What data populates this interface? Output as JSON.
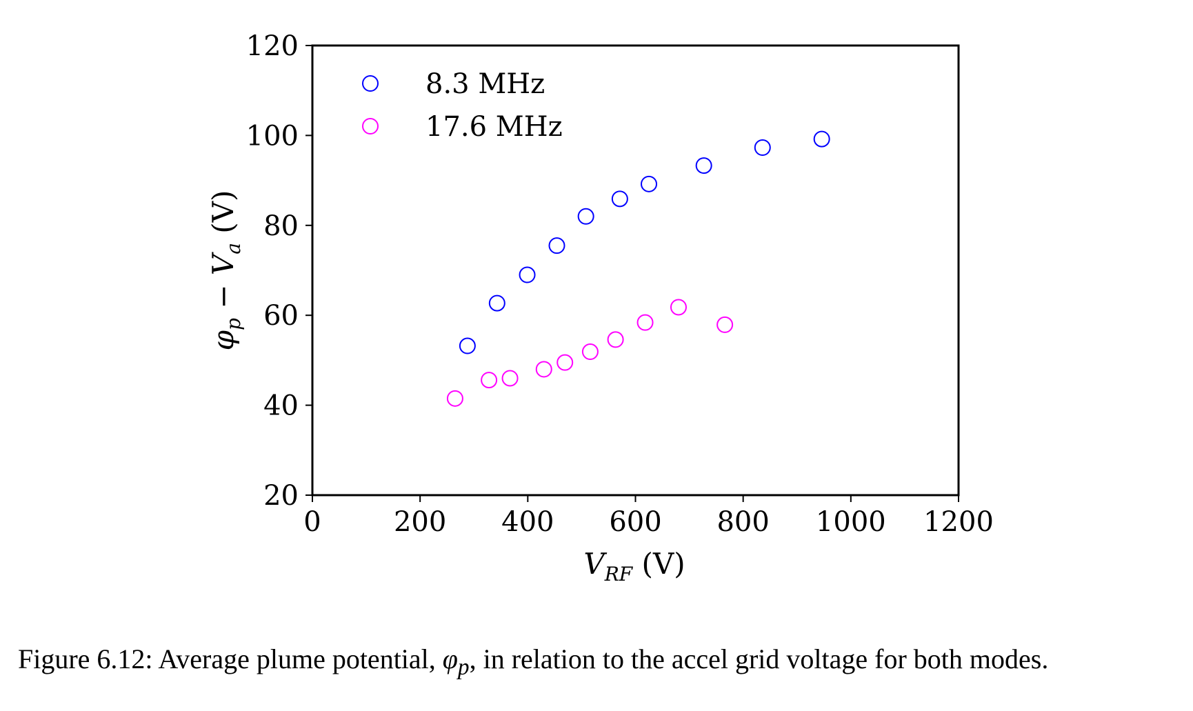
{
  "chart_data": {
    "type": "scatter",
    "xlabel": "V_RF (V)",
    "ylabel": "φ_p − V_a (V)",
    "xlim": [
      0,
      1200
    ],
    "ylim": [
      20,
      120
    ],
    "xticks": [
      "0",
      "200",
      "400",
      "600",
      "800",
      "1000",
      "1200"
    ],
    "yticks": [
      "20",
      "40",
      "60",
      "80",
      "100",
      "120"
    ],
    "grid": false,
    "legend_position": "top-left",
    "marker": "open-circle",
    "series": [
      {
        "name": "8.3 MHz",
        "color": "#0000ff",
        "points": [
          {
            "x": 288,
            "y": 53.2
          },
          {
            "x": 343,
            "y": 62.7
          },
          {
            "x": 399,
            "y": 69.0
          },
          {
            "x": 454,
            "y": 75.5
          },
          {
            "x": 508,
            "y": 82.0
          },
          {
            "x": 571,
            "y": 85.9
          },
          {
            "x": 625,
            "y": 89.2
          },
          {
            "x": 727,
            "y": 93.3
          },
          {
            "x": 836,
            "y": 97.3
          },
          {
            "x": 946,
            "y": 99.2
          }
        ]
      },
      {
        "name": "17.6 MHz",
        "color": "#ff00ff",
        "points": [
          {
            "x": 265,
            "y": 41.5
          },
          {
            "x": 328,
            "y": 45.6
          },
          {
            "x": 367,
            "y": 46.0
          },
          {
            "x": 430,
            "y": 48.0
          },
          {
            "x": 469,
            "y": 49.5
          },
          {
            "x": 516,
            "y": 51.9
          },
          {
            "x": 563,
            "y": 54.6
          },
          {
            "x": 618,
            "y": 58.4
          },
          {
            "x": 680,
            "y": 61.8
          },
          {
            "x": 766,
            "y": 57.9
          }
        ]
      }
    ]
  },
  "caption": {
    "prefix": "Figure 6.12: Average plume potential, ",
    "symbol": "φ",
    "subscript": "p",
    "suffix": ", in relation to the accel grid voltage for both modes."
  }
}
